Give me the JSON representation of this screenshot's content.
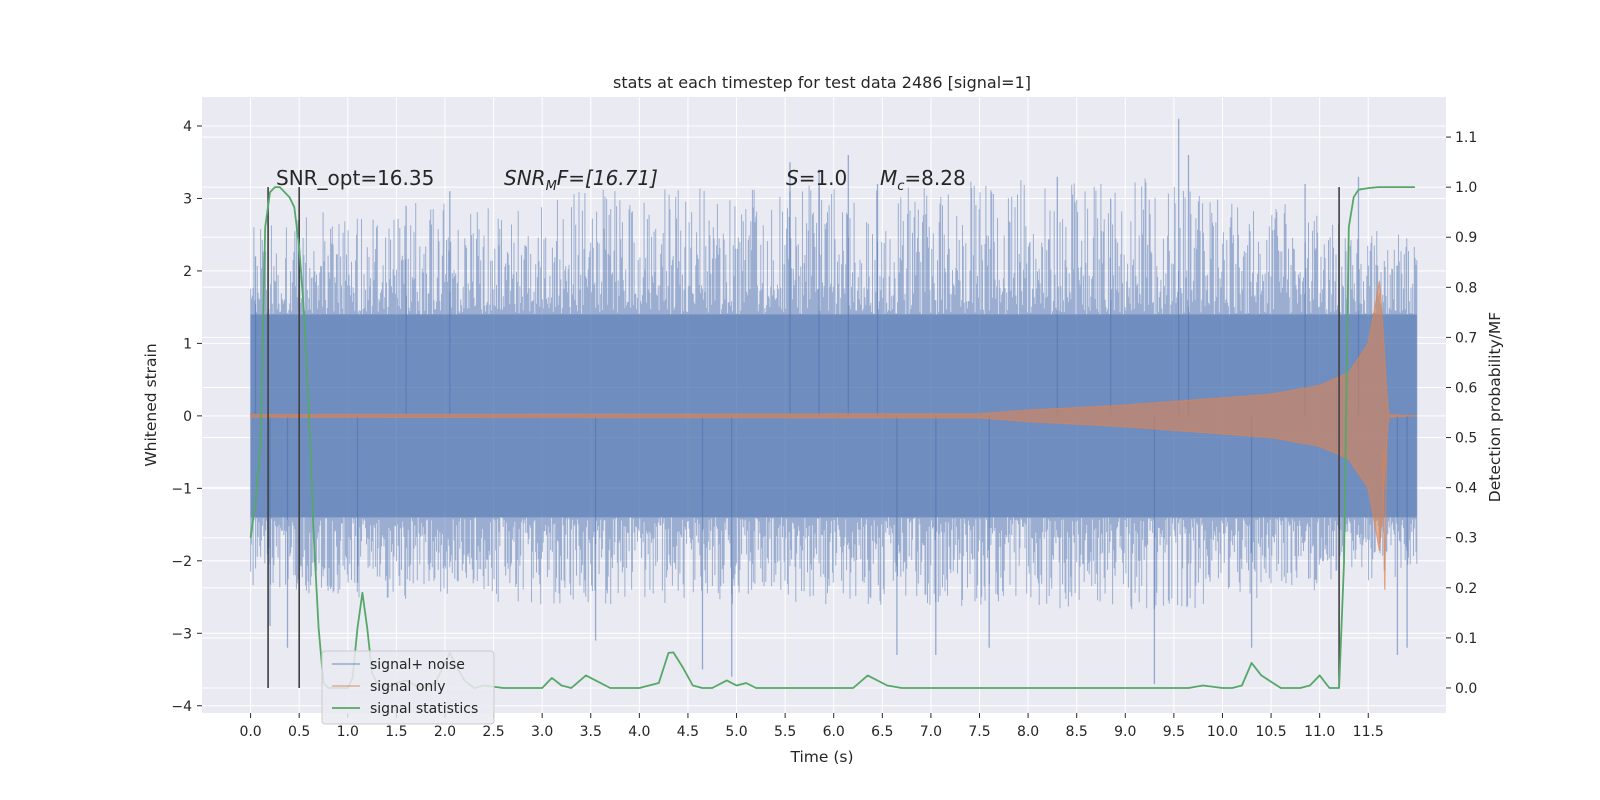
{
  "chart_data": {
    "type": "line",
    "title": "stats at each timestep for test data 2486 [signal=1]",
    "xlabel": "Time (s)",
    "ylabel": "Whitened strain",
    "ylabel_right": "Detection probability/MF",
    "xlim": [
      -0.5,
      12.3
    ],
    "ylim": [
      -4.1,
      4.4
    ],
    "ylim_right": [
      -0.05,
      1.18
    ],
    "x_ticks": [
      "0.0",
      "0.5",
      "1.0",
      "1.5",
      "2.0",
      "2.5",
      "3.0",
      "3.5",
      "4.0",
      "4.5",
      "5.0",
      "5.5",
      "6.0",
      "6.5",
      "7.0",
      "7.5",
      "8.0",
      "8.5",
      "9.0",
      "9.5",
      "10.0",
      "10.5",
      "11.0",
      "11.5"
    ],
    "y_ticks": [
      "−4",
      "−3",
      "−2",
      "−1",
      "0",
      "1",
      "2",
      "3",
      "4"
    ],
    "y_ticks_right": [
      "0.0",
      "0.1",
      "0.2",
      "0.3",
      "0.4",
      "0.5",
      "0.6",
      "0.7",
      "0.8",
      "0.9",
      "1.0",
      "1.1"
    ],
    "grid": true,
    "legend_placement": "lower-left",
    "colors": {
      "background": "#eaeaf2",
      "grid": "#ffffff",
      "noise": "#4c72b0",
      "signal": "#dd8452",
      "stats": "#55a868",
      "marker": "#404040"
    },
    "annotations": [
      {
        "id": "snr_opt",
        "text": "SNR_opt=16.35"
      },
      {
        "id": "snr_mf",
        "text": "SNR",
        "sub": "M",
        "suffix": "F=[16.71]"
      },
      {
        "id": "s",
        "text": "S",
        "suffix": "=1.0"
      },
      {
        "id": "mc",
        "text": "M",
        "sub": "c",
        "suffix": "=8.28"
      }
    ],
    "series": [
      {
        "name": "signal+ noise",
        "kind": "noise-band",
        "x_range": [
          0.0,
          12.0
        ],
        "core_band": [
          -1.4,
          1.4
        ],
        "envelope_top": [
          [
            0.0,
            2.6
          ],
          [
            1.0,
            2.9
          ],
          [
            3.0,
            3.1
          ],
          [
            6.0,
            3.2
          ],
          [
            9.5,
            3.3
          ],
          [
            12.0,
            2.5
          ]
        ],
        "envelope_bottom": [
          [
            0.0,
            -2.4
          ],
          [
            1.0,
            -2.5
          ],
          [
            3.0,
            -2.6
          ],
          [
            6.0,
            -2.6
          ],
          [
            9.5,
            -2.7
          ],
          [
            12.0,
            -2.2
          ]
        ],
        "spikes": [
          [
            0.05,
            2.2
          ],
          [
            0.2,
            -2.9
          ],
          [
            0.38,
            -3.2
          ],
          [
            1.1,
            -2.3
          ],
          [
            1.6,
            2.9
          ],
          [
            2.05,
            3.1
          ],
          [
            3.55,
            -3.1
          ],
          [
            4.65,
            -3.5
          ],
          [
            4.95,
            -3.6
          ],
          [
            5.55,
            3.5
          ],
          [
            5.85,
            3.4
          ],
          [
            6.15,
            3.6
          ],
          [
            6.45,
            3.2
          ],
          [
            6.65,
            -3.3
          ],
          [
            7.05,
            -3.3
          ],
          [
            7.6,
            -3.2
          ],
          [
            8.3,
            3.3
          ],
          [
            8.85,
            3.0
          ],
          [
            9.3,
            -3.7
          ],
          [
            9.55,
            4.1
          ],
          [
            9.65,
            3.6
          ],
          [
            10.3,
            -3.2
          ],
          [
            10.85,
            3.2
          ],
          [
            11.4,
            3.3
          ],
          [
            11.8,
            -3.3
          ],
          [
            11.9,
            -3.2
          ]
        ]
      },
      {
        "name": "signal only",
        "kind": "chirp",
        "x_range": [
          0.0,
          12.0
        ],
        "envelope": [
          [
            0.0,
            0.02
          ],
          [
            7.5,
            0.03
          ],
          [
            8.0,
            0.08
          ],
          [
            9.0,
            0.15
          ],
          [
            10.0,
            0.25
          ],
          [
            10.5,
            0.3
          ],
          [
            11.0,
            0.42
          ],
          [
            11.3,
            0.6
          ],
          [
            11.5,
            1.0
          ],
          [
            11.62,
            1.9
          ],
          [
            11.68,
            0.6
          ],
          [
            11.7,
            0.02
          ],
          [
            12.0,
            0.0
          ]
        ],
        "min_point": [
          11.67,
          -2.4
        ]
      },
      {
        "name": "signal statistics",
        "kind": "line",
        "axis": "right",
        "x": [
          0.0,
          0.05,
          0.1,
          0.15,
          0.2,
          0.25,
          0.3,
          0.4,
          0.45,
          0.5,
          0.55,
          0.6,
          0.65,
          0.7,
          0.75,
          0.8,
          0.85,
          1.0,
          1.05,
          1.1,
          1.15,
          1.2,
          1.25,
          1.3,
          1.4,
          1.5,
          1.6,
          1.7,
          1.8,
          1.9,
          2.0,
          2.05,
          2.1,
          2.2,
          2.3,
          2.4,
          2.6,
          3.0,
          3.1,
          3.2,
          3.3,
          3.45,
          3.55,
          3.7,
          3.8,
          4.0,
          4.2,
          4.3,
          4.35,
          4.45,
          4.55,
          4.65,
          4.75,
          4.9,
          5.0,
          5.1,
          5.2,
          5.4,
          5.6,
          5.8,
          6.0,
          6.2,
          6.35,
          6.55,
          6.7,
          6.9,
          7.2,
          7.5,
          7.7,
          7.9,
          8.2,
          8.6,
          9.0,
          9.2,
          9.45,
          9.65,
          9.8,
          10.0,
          10.1,
          10.2,
          10.3,
          10.4,
          10.6,
          10.8,
          10.9,
          11.0,
          11.1,
          11.2,
          11.25,
          11.3,
          11.35,
          11.4,
          11.5,
          11.6,
          11.7,
          11.8,
          11.9,
          11.98
        ],
        "values": [
          0.3,
          0.37,
          0.48,
          0.92,
          0.99,
          1.0,
          1.0,
          0.98,
          0.96,
          0.88,
          0.75,
          0.55,
          0.3,
          0.12,
          0.01,
          0.0,
          0.0,
          0.0,
          0.02,
          0.12,
          0.19,
          0.12,
          0.03,
          0.01,
          0.0,
          0.01,
          0.015,
          0.005,
          0.0,
          0.01,
          0.05,
          0.07,
          0.05,
          0.015,
          0.0,
          0.005,
          0.0,
          0.0,
          0.02,
          0.005,
          0.0,
          0.025,
          0.015,
          0.0,
          0.0,
          0.0,
          0.01,
          0.07,
          0.071,
          0.04,
          0.005,
          0.0,
          0.0,
          0.015,
          0.005,
          0.01,
          0.0,
          0.0,
          0.0,
          0.0,
          0.0,
          0.0,
          0.025,
          0.005,
          0.0,
          0.0,
          0.0,
          0.0,
          0.0,
          0.0,
          0.0,
          0.0,
          0.0,
          0.0,
          0.0,
          0.0,
          0.005,
          0.0,
          0.0,
          0.005,
          0.05,
          0.025,
          0.0,
          0.0,
          0.005,
          0.025,
          0.0,
          0.0,
          0.25,
          0.92,
          0.98,
          0.995,
          0.998,
          1.0,
          1.0,
          1.0,
          1.0,
          1.0
        ]
      }
    ],
    "markers": {
      "axis": "right",
      "x": [
        0.18,
        0.5,
        11.2
      ],
      "range": [
        0.0,
        1.0
      ]
    }
  }
}
